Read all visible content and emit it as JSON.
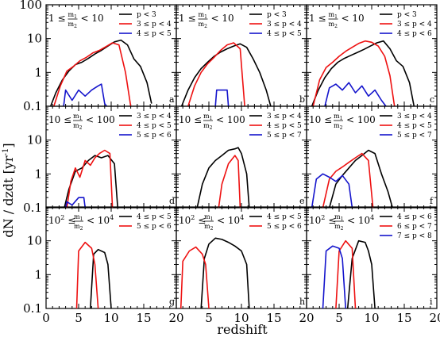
{
  "colors": {
    "black": "#000000",
    "red": "#ee1111",
    "blue": "#1414cc"
  },
  "axes": {
    "xlabel": "redshift",
    "ylabel": "dN / dzdt  [yr",
    "ylabel_sup": "-1",
    "ylabel_close": "]",
    "xlim": [
      0,
      20
    ],
    "ylim": [
      0.1,
      100
    ],
    "yscale": "log",
    "xticks": [
      "0",
      "5",
      "10",
      "15",
      "20"
    ],
    "yticks": [
      "0.1",
      "1",
      "10",
      "100"
    ],
    "grid": false
  },
  "chart_data": {
    "type": "line",
    "rows": [
      {
        "cond_left": "1 ≤",
        "num": "m",
        "num_sub": "1",
        "den": "m",
        "den_sub": "2",
        "cond_right": "< 10"
      },
      {
        "cond_left": "10 ≤",
        "num": "m",
        "num_sub": "1",
        "den": "m",
        "den_sub": "2",
        "cond_right": "< 100"
      },
      {
        "cond_left": "10",
        "cond_left_sup": "2",
        "cond_left_rest": " ≤",
        "num": "m",
        "num_sub": "1",
        "den": "m",
        "den_sub": "2",
        "cond_right": "< 10",
        "cond_right_sup": "4"
      }
    ],
    "panels": [
      {
        "letter": "a",
        "series": [
          {
            "name": "p < 3",
            "color": "black",
            "x": [
              0.7,
              1.5,
              2.5,
              3.5,
              4.5,
              5.5,
              6.5,
              7.5,
              8.5,
              9.5,
              10.5,
              11.5,
              12.5,
              13.5,
              14.5,
              15.5,
              16.2
            ],
            "y": [
              0.1,
              0.25,
              0.6,
              1.1,
              1.7,
              2.0,
              2.6,
              3.5,
              4.5,
              6.0,
              8.0,
              9.0,
              6.5,
              2.5,
              1.5,
              0.5,
              0.12
            ]
          },
          {
            "name": "3 ≤ p < 4",
            "color": "red",
            "x": [
              1.2,
              2.2,
              3.2,
              4.2,
              5.2,
              6.2,
              7.2,
              8.2,
              9.2,
              10.2,
              11.2,
              12.2,
              13.0
            ],
            "y": [
              0.1,
              0.4,
              1.1,
              1.5,
              2.2,
              2.8,
              3.8,
              4.5,
              5.8,
              7.5,
              6.5,
              1.0,
              0.1
            ]
          },
          {
            "name": "4 ≤ p < 5",
            "color": "blue",
            "x": [
              2.7,
              3.0,
              4.0,
              5.0,
              6.0,
              7.0,
              8.0,
              8.5,
              9.0,
              9.3
            ],
            "y": [
              0.1,
              0.3,
              0.15,
              0.3,
              0.2,
              0.3,
              0.4,
              0.45,
              0.12,
              0.1
            ]
          }
        ]
      },
      {
        "letter": "b",
        "series": [
          {
            "name": "p < 3",
            "color": "black",
            "x": [
              0.8,
              1.8,
              2.8,
              3.8,
              4.8,
              5.8,
              6.8,
              7.8,
              8.8,
              9.8,
              10.8,
              11.8,
              12.8,
              13.8,
              14.5
            ],
            "y": [
              0.1,
              0.3,
              0.7,
              1.3,
              2.0,
              3.0,
              4.0,
              5.0,
              6.0,
              7.0,
              5.5,
              2.5,
              1.0,
              0.3,
              0.1
            ]
          },
          {
            "name": "3 ≤ p < 4",
            "color": "red",
            "x": [
              1.8,
              2.8,
              3.8,
              4.8,
              5.8,
              6.8,
              7.8,
              8.8,
              9.8,
              10.5
            ],
            "y": [
              0.1,
              0.4,
              1.0,
              1.8,
              2.8,
              4.5,
              6.5,
              7.5,
              5.0,
              0.1
            ]
          },
          {
            "name": "4 ≤ p < 5",
            "color": "blue",
            "x": [
              6.0,
              6.2,
              7.8,
              8.0
            ],
            "y": [
              0.1,
              0.3,
              0.3,
              0.1
            ]
          }
        ]
      },
      {
        "letter": "c",
        "series": [
          {
            "name": "p < 3",
            "color": "black",
            "x": [
              0.8,
              1.8,
              2.8,
              3.8,
              4.8,
              5.8,
              6.8,
              7.8,
              8.8,
              9.8,
              10.8,
              11.8,
              12.8,
              13.8,
              14.8,
              15.8,
              16.5
            ],
            "y": [
              0.1,
              0.3,
              0.7,
              1.3,
              2.0,
              2.6,
              3.2,
              3.9,
              4.8,
              6.0,
              7.5,
              8.5,
              5.0,
              2.2,
              1.5,
              0.5,
              0.1
            ]
          },
          {
            "name": "3 ≤ p < 4",
            "color": "red",
            "x": [
              1.0,
              2.0,
              3.0,
              4.0,
              5.0,
              6.0,
              7.0,
              8.0,
              9.0,
              10.0,
              11.0,
              12.0,
              12.8,
              13.5
            ],
            "y": [
              0.1,
              0.6,
              1.4,
              2.0,
              3.0,
              4.2,
              5.5,
              7.2,
              8.5,
              7.8,
              6.0,
              3.0,
              0.8,
              0.1
            ]
          },
          {
            "name": "4 ≤ p < 6",
            "color": "blue",
            "x": [
              2.8,
              3.5,
              4.5,
              5.5,
              6.5,
              7.5,
              8.5,
              9.5,
              10.5,
              11.5,
              12.2
            ],
            "y": [
              0.1,
              0.35,
              0.45,
              0.3,
              0.5,
              0.25,
              0.4,
              0.2,
              0.3,
              0.15,
              0.1
            ]
          }
        ]
      },
      {
        "letter": "d",
        "series": [
          {
            "name": "3 ≤ p < 4",
            "color": "black",
            "x": [
              2.8,
              3.5,
              4.5,
              5.5,
              6.5,
              7.5,
              8.5,
              9.5,
              10.5,
              11.0
            ],
            "y": [
              0.1,
              0.35,
              1.2,
              1.5,
              2.5,
              3.5,
              3.0,
              3.5,
              2.0,
              0.1
            ]
          },
          {
            "name": "4 ≤ p < 5",
            "color": "red",
            "x": [
              3.2,
              3.8,
              4.5,
              5.2,
              6.0,
              6.8,
              7.5,
              8.2,
              9.0,
              9.8,
              10.2
            ],
            "y": [
              0.1,
              0.6,
              1.5,
              0.8,
              2.5,
              1.8,
              3.0,
              4.0,
              5.0,
              4.0,
              0.1
            ]
          },
          {
            "name": "5 ≤ p < 6",
            "color": "blue",
            "x": [
              3.0,
              3.2,
              4.0,
              5.0,
              5.8,
              6.0
            ],
            "y": [
              0.1,
              0.15,
              0.12,
              0.2,
              0.2,
              0.1
            ]
          }
        ]
      },
      {
        "letter": "e",
        "series": [
          {
            "name": "3 ≤ p < 4",
            "color": "black",
            "x": [
              3.2,
              4.0,
              5.0,
              6.0,
              7.0,
              8.0,
              9.0,
              9.5,
              10.0,
              10.8,
              11.2
            ],
            "y": [
              0.1,
              0.5,
              1.5,
              2.5,
              3.5,
              5.0,
              5.5,
              6.0,
              4.0,
              1.0,
              0.1
            ]
          },
          {
            "name": "4 ≤ p < 5",
            "color": "red",
            "x": [
              6.5,
              7.0,
              8.0,
              9.0,
              9.5,
              9.8
            ],
            "y": [
              0.1,
              0.5,
              2.0,
              3.5,
              2.5,
              0.1
            ]
          },
          {
            "name": "5 ≤ p < 7",
            "color": "blue",
            "x": [],
            "y": []
          }
        ]
      },
      {
        "letter": "f",
        "series": [
          {
            "name": "3 ≤ p < 4",
            "color": "black",
            "x": [
              3.5,
              4.5,
              5.5,
              6.5,
              7.5,
              8.5,
              9.5,
              10.5,
              11.5,
              12.5,
              13.2
            ],
            "y": [
              0.1,
              0.5,
              0.9,
              1.5,
              2.5,
              3.5,
              5.0,
              4.0,
              1.0,
              0.3,
              0.1
            ]
          },
          {
            "name": "4 ≤ p < 5",
            "color": "red",
            "x": [
              2.5,
              3.5,
              4.5,
              5.5,
              6.5,
              7.5,
              8.5,
              9.5,
              10.2
            ],
            "y": [
              0.1,
              0.7,
              1.2,
              1.6,
              2.2,
              3.0,
              4.0,
              2.5,
              0.1
            ]
          },
          {
            "name": "5 ≤ p < 7",
            "color": "blue",
            "x": [
              0.8,
              1.5,
              2.5,
              3.5,
              4.5,
              5.5,
              6.5,
              7.0
            ],
            "y": [
              0.1,
              0.7,
              1.0,
              0.8,
              0.6,
              0.9,
              0.5,
              0.1
            ]
          }
        ]
      },
      {
        "letter": "g",
        "series": [
          {
            "name": "4 ≤ p < 5",
            "color": "black",
            "x": [
              6.8,
              7.3,
              8.0,
              9.0,
              9.5,
              10.0
            ],
            "y": [
              0.1,
              4.0,
              5.5,
              4.5,
              2.0,
              0.1
            ]
          },
          {
            "name": "5 ≤ p < 6",
            "color": "red",
            "x": [
              4.7,
              5.0,
              6.0,
              7.0,
              7.5,
              8.0
            ],
            "y": [
              0.1,
              5.0,
              9.0,
              6.0,
              2.0,
              0.1
            ]
          }
        ]
      },
      {
        "letter": "h",
        "series": [
          {
            "name": "4 ≤ p < 5",
            "color": "black",
            "x": [
              3.8,
              4.3,
              5.0,
              6.0,
              7.0,
              8.0,
              9.0,
              10.0,
              10.8,
              11.2
            ],
            "y": [
              0.1,
              3.0,
              8.0,
              12.0,
              11.0,
              9.0,
              7.0,
              5.0,
              2.0,
              0.1
            ]
          },
          {
            "name": "5 ≤ p < 6",
            "color": "red",
            "x": [
              0.7,
              1.0,
              2.0,
              3.0,
              4.0,
              4.5,
              5.0
            ],
            "y": [
              0.1,
              2.5,
              5.0,
              6.5,
              4.0,
              2.0,
              0.1
            ]
          }
        ]
      },
      {
        "letter": "i",
        "series": [
          {
            "name": "4 ≤ p < 6",
            "color": "black",
            "x": [
              6.3,
              7.0,
              8.0,
              9.0,
              9.5,
              10.0,
              10.5
            ],
            "y": [
              0.1,
              3.0,
              10.0,
              9.0,
              5.0,
              2.0,
              0.1
            ]
          },
          {
            "name": "6 ≤ p < 7",
            "color": "red",
            "x": [
              4.5,
              5.0,
              6.0,
              7.0,
              7.5
            ],
            "y": [
              0.1,
              5.0,
              10.0,
              6.0,
              0.1
            ]
          },
          {
            "name": "7 ≤ p < 8",
            "color": "blue",
            "x": [
              2.5,
              3.0,
              4.0,
              5.0,
              5.5,
              6.0
            ],
            "y": [
              0.1,
              5.0,
              7.0,
              6.0,
              3.0,
              0.1
            ]
          }
        ]
      }
    ]
  }
}
